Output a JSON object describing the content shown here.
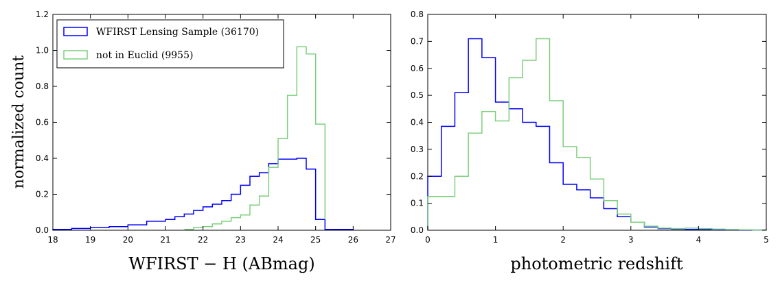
{
  "chart_data": [
    {
      "type": "histogram",
      "xlabel": "WFIRST − H (ABmag)",
      "ylabel": "normalized count",
      "xlim": [
        18,
        27
      ],
      "ylim": [
        0,
        1.2
      ],
      "xticks": [
        "18",
        "19",
        "20",
        "21",
        "22",
        "23",
        "24",
        "25",
        "26",
        "27"
      ],
      "yticks": [
        "0.0",
        "0.2",
        "0.4",
        "0.6",
        "0.8",
        "1.0",
        "1.2"
      ],
      "legend": {
        "position": "top-left"
      },
      "series": [
        {
          "name": "WFIRST Lensing Sample (36170)",
          "color": "#0000ff",
          "bin_edges": [
            18.0,
            18.5,
            19.0,
            19.5,
            20.0,
            20.5,
            21.0,
            21.25,
            21.5,
            21.75,
            22.0,
            22.25,
            22.5,
            22.75,
            23.0,
            23.25,
            23.5,
            23.75,
            24.0,
            24.25,
            24.5,
            24.75,
            25.0,
            25.25,
            26.0
          ],
          "values": [
            0.005,
            0.01,
            0.015,
            0.02,
            0.03,
            0.05,
            0.06,
            0.075,
            0.09,
            0.11,
            0.13,
            0.145,
            0.165,
            0.2,
            0.25,
            0.3,
            0.32,
            0.37,
            0.395,
            0.395,
            0.4,
            0.34,
            0.06,
            0.005
          ]
        },
        {
          "name": "not in Euclid (9955)",
          "color": "#7ccf7c",
          "bin_edges": [
            21.5,
            21.75,
            22.0,
            22.25,
            22.5,
            22.75,
            23.0,
            23.25,
            23.5,
            23.75,
            24.0,
            24.25,
            24.5,
            24.75,
            25.0,
            25.25
          ],
          "values": [
            0.005,
            0.015,
            0.02,
            0.035,
            0.05,
            0.07,
            0.085,
            0.14,
            0.19,
            0.35,
            0.51,
            0.75,
            1.02,
            0.98,
            0.59,
            0.06
          ]
        }
      ]
    },
    {
      "type": "histogram",
      "xlabel": "photometric redshift",
      "ylabel": "",
      "xlim": [
        0,
        5
      ],
      "ylim": [
        0,
        0.8
      ],
      "xticks": [
        "0",
        "1",
        "2",
        "3",
        "4",
        "5"
      ],
      "yticks": [
        "0.0",
        "0.1",
        "0.2",
        "0.3",
        "0.4",
        "0.5",
        "0.6",
        "0.7",
        "0.8"
      ],
      "series": [
        {
          "name": "WFIRST Lensing Sample",
          "color": "#0000ff",
          "bin_edges": [
            0.0,
            0.2,
            0.4,
            0.6,
            0.8,
            1.0,
            1.2,
            1.4,
            1.6,
            1.8,
            2.0,
            2.2,
            2.4,
            2.6,
            2.8,
            3.0,
            3.2,
            3.4,
            3.6,
            3.8,
            4.0,
            4.2,
            4.4,
            4.6,
            4.8,
            5.0
          ],
          "values": [
            0.2,
            0.385,
            0.51,
            0.71,
            0.64,
            0.475,
            0.45,
            0.4,
            0.385,
            0.25,
            0.17,
            0.15,
            0.12,
            0.08,
            0.05,
            0.03,
            0.012,
            0.006,
            0.004,
            0.003,
            0.003,
            0.002,
            0.002,
            0.001,
            0.001
          ]
        },
        {
          "name": "not in Euclid",
          "color": "#7ccf7c",
          "bin_edges": [
            0.0,
            0.4,
            0.6,
            0.8,
            1.0,
            1.2,
            1.4,
            1.6,
            1.8,
            2.0,
            2.2,
            2.4,
            2.6,
            2.8,
            3.0,
            3.2,
            3.4,
            3.6,
            3.8,
            4.0,
            4.2,
            4.4,
            4.6,
            4.8,
            5.0
          ],
          "values": [
            0.125,
            0.2,
            0.36,
            0.44,
            0.405,
            0.565,
            0.63,
            0.71,
            0.48,
            0.31,
            0.27,
            0.19,
            0.11,
            0.06,
            0.03,
            0.015,
            0.008,
            0.006,
            0.008,
            0.006,
            0.004,
            0.003,
            0.002,
            0.001
          ]
        }
      ]
    }
  ]
}
